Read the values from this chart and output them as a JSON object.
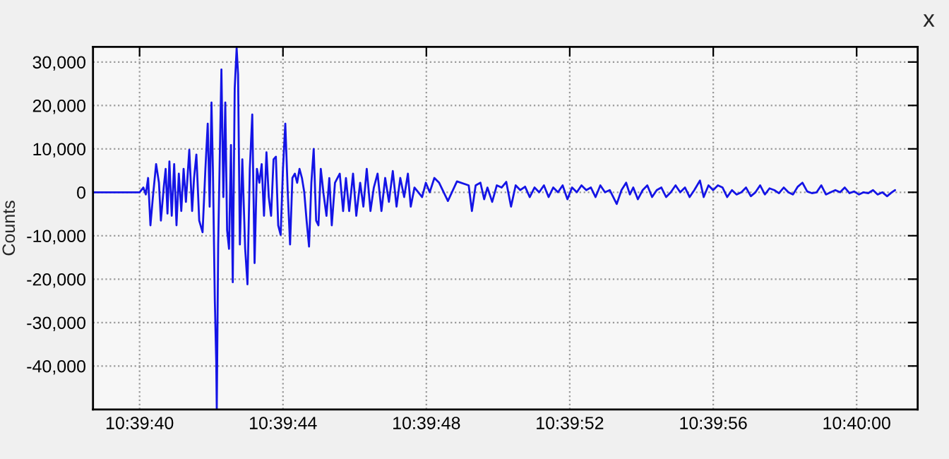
{
  "chart_data": {
    "type": "line",
    "ylabel": "Counts",
    "annotations": [
      "x"
    ],
    "xlim": [
      10.66075,
      10.66714
    ],
    "ylim": [
      -50000,
      33500
    ],
    "xticks": [
      {
        "value": 10.661111,
        "label": "10:39:40"
      },
      {
        "value": 10.662222,
        "label": "10:39:44"
      },
      {
        "value": 10.663333,
        "label": "10:39:48"
      },
      {
        "value": 10.664444,
        "label": "10:39:52"
      },
      {
        "value": 10.665556,
        "label": "10:39:56"
      },
      {
        "value": 10.666667,
        "label": "10:40:00"
      }
    ],
    "yticks": [
      {
        "value": 30000,
        "label": "30,000"
      },
      {
        "value": 20000,
        "label": "20,000"
      },
      {
        "value": 10000,
        "label": "10,000"
      },
      {
        "value": 0,
        "label": "0"
      },
      {
        "value": -10000,
        "label": "-10,000"
      },
      {
        "value": -20000,
        "label": "-20,000"
      },
      {
        "value": -30000,
        "label": "-30,000"
      },
      {
        "value": -40000,
        "label": "-40,000"
      }
    ],
    "grid": true,
    "marker": "none",
    "line_style": "solid",
    "series": [
      {
        "color": "#1414e6",
        "x": [
          10.66075,
          10.661111,
          10.66114,
          10.661159,
          10.661177,
          10.661195,
          10.661214,
          10.661239,
          10.661261,
          10.661276,
          10.661298,
          10.661313,
          10.661327,
          10.661342,
          10.66136,
          10.661379,
          10.661397,
          10.661415,
          10.661434,
          10.661452,
          10.66147,
          10.661496,
          10.661518,
          10.661533,
          10.661551,
          10.661573,
          10.661599,
          10.661621,
          10.661639,
          10.661654,
          10.661668,
          10.661679,
          10.661694,
          10.661705,
          10.661709,
          10.66172,
          10.661734,
          10.661745,
          10.66176,
          10.661775,
          10.661789,
          10.661804,
          10.661819,
          10.661833,
          10.661848,
          10.661863,
          10.661874,
          10.661888,
          10.661907,
          10.661929,
          10.661947,
          10.661965,
          10.661984,
          10.662002,
          10.66202,
          10.662039,
          10.662057,
          10.662075,
          10.662094,
          10.662112,
          10.66213,
          10.662149,
          10.662167,
          10.662185,
          10.662204,
          10.662222,
          10.66224,
          10.662259,
          10.662277,
          10.662295,
          10.662314,
          10.662332,
          10.66235,
          10.662369,
          10.662387,
          10.662405,
          10.662424,
          10.662442,
          10.66246,
          10.662479,
          10.662497,
          10.662515,
          10.662537,
          10.662559,
          10.662581,
          10.6626,
          10.662625,
          10.662662,
          10.662688,
          10.66271,
          10.662735,
          10.662765,
          10.66279,
          10.66282,
          10.662845,
          10.662871,
          10.6629,
          10.662926,
          10.662955,
          10.662985,
          10.663014,
          10.663043,
          10.663073,
          10.663102,
          10.663131,
          10.663161,
          10.66319,
          10.663212,
          10.663241,
          10.663271,
          10.6633,
          10.663329,
          10.663359,
          10.663395,
          10.663432,
          10.6635,
          10.66357,
          10.663661,
          10.663686,
          10.663715,
          10.663752,
          10.663781,
          10.663806,
          10.663843,
          10.663879,
          10.663916,
          10.663952,
          10.663989,
          10.664025,
          10.664061,
          10.664098,
          10.664134,
          10.664171,
          10.664207,
          10.664244,
          10.66428,
          10.664316,
          10.664353,
          10.664389,
          10.664426,
          10.664462,
          10.664499,
          10.664535,
          10.664572,
          10.664608,
          10.664644,
          10.664681,
          10.664717,
          10.664754,
          10.664808,
          10.664845,
          10.664881,
          10.66491,
          10.664936,
          10.664972,
          10.665009,
          10.665045,
          10.665082,
          10.665118,
          10.665154,
          10.665191,
          10.665227,
          10.665264,
          10.6653,
          10.665337,
          10.665373,
          10.665409,
          10.665453,
          10.665482,
          10.665519,
          10.665555,
          10.665592,
          10.665628,
          10.665664,
          10.665701,
          10.665737,
          10.665774,
          10.66581,
          10.665847,
          10.665883,
          10.665919,
          10.665956,
          10.665992,
          10.666029,
          10.666065,
          10.666102,
          10.666138,
          10.666174,
          10.666211,
          10.666247,
          10.666284,
          10.66632,
          10.666357,
          10.666393,
          10.666429,
          10.666466,
          10.666502,
          10.666539,
          10.666575,
          10.666612,
          10.666648,
          10.666684,
          10.666721,
          10.666757,
          10.666794,
          10.66683,
          10.666867,
          10.666903,
          10.666939,
          10.666965
        ],
        "values": [
          0,
          0,
          1100,
          -500,
          3300,
          -7600,
          -1100,
          6500,
          2200,
          -6500,
          1100,
          5400,
          -4900,
          7100,
          -5400,
          6500,
          -7600,
          4300,
          -4300,
          5400,
          -2200,
          9800,
          -4300,
          3300,
          8700,
          -6500,
          -9200,
          5400,
          15800,
          -3300,
          20700,
          5400,
          -25000,
          -39100,
          -50000,
          -12000,
          10900,
          28300,
          -1100,
          20700,
          -8700,
          -13000,
          10900,
          -20700,
          23900,
          33200,
          27200,
          -12000,
          7600,
          -13000,
          -21200,
          5400,
          17900,
          -16300,
          5400,
          2200,
          6500,
          -5400,
          9200,
          -1100,
          -5400,
          7600,
          8200,
          -7600,
          -9800,
          5400,
          15800,
          0,
          -12000,
          3300,
          4300,
          2200,
          5400,
          3300,
          0,
          -6500,
          -12500,
          2200,
          10000,
          -6500,
          -7600,
          5400,
          -500,
          -5400,
          3300,
          -7600,
          2200,
          4300,
          -4300,
          3300,
          -4300,
          4300,
          -5400,
          2200,
          -3300,
          5400,
          -4300,
          1100,
          4300,
          -4300,
          3300,
          -2200,
          4900,
          -3300,
          3300,
          -1100,
          4300,
          -3300,
          1100,
          0,
          -1100,
          2200,
          0,
          3300,
          2200,
          -2000,
          2500,
          1600,
          -4300,
          1600,
          2200,
          -1600,
          1100,
          -2200,
          1600,
          1100,
          2400,
          -3300,
          1600,
          500,
          1300,
          -1100,
          1100,
          0,
          1600,
          -1100,
          1100,
          0,
          1600,
          -1600,
          1100,
          0,
          1600,
          500,
          1100,
          -1100,
          1600,
          0,
          500,
          -2700,
          500,
          2200,
          -500,
          1100,
          -1600,
          500,
          1600,
          -1100,
          500,
          1100,
          -1100,
          0,
          1600,
          0,
          1100,
          -1100,
          500,
          2700,
          -1100,
          1600,
          500,
          1600,
          1100,
          -1100,
          500,
          -500,
          0,
          1100,
          -900,
          0,
          1600,
          -500,
          900,
          500,
          -200,
          1100,
          0,
          -500,
          1300,
          2200,
          200,
          -200,
          0,
          1600,
          -500,
          0,
          500,
          0,
          1100,
          -200,
          200,
          -500,
          0,
          -200,
          500,
          -500,
          0,
          -900,
          0,
          500
        ]
      }
    ]
  }
}
